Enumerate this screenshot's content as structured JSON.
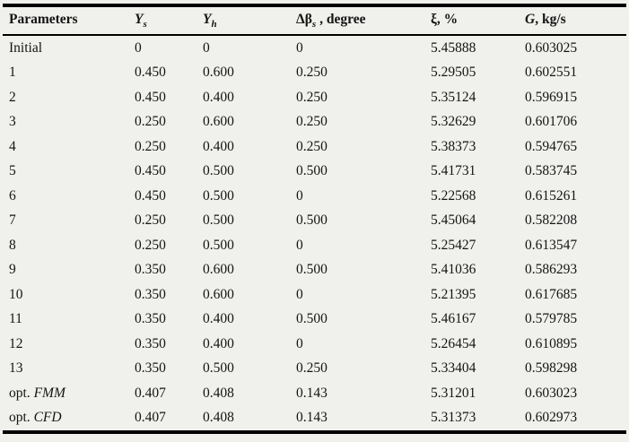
{
  "page": {
    "background_color": "#f0f0ed",
    "text_color": "#141414",
    "border_color": "#000000"
  },
  "table": {
    "header": {
      "parameters": "Parameters",
      "ys": {
        "base": "Y",
        "sub": "s"
      },
      "yh": {
        "base": "Y",
        "sub": "h"
      },
      "dbeta": {
        "base": "Δβ",
        "sub": "s",
        "suffix": ", degree"
      },
      "xi": "ξ, %",
      "g": {
        "base": "G",
        "suffix": ", kg/s"
      }
    },
    "rows": [
      {
        "param": "Initial",
        "param_italic": "",
        "ys": "0",
        "yh": "0",
        "dbeta": "0",
        "xi": "5.45888",
        "g": "0.603025"
      },
      {
        "param": "1",
        "param_italic": "",
        "ys": "0.450",
        "yh": "0.600",
        "dbeta": "0.250",
        "xi": "5.29505",
        "g": "0.602551"
      },
      {
        "param": "2",
        "param_italic": "",
        "ys": "0.450",
        "yh": "0.400",
        "dbeta": "0.250",
        "xi": "5.35124",
        "g": "0.596915"
      },
      {
        "param": "3",
        "param_italic": "",
        "ys": "0.250",
        "yh": "0.600",
        "dbeta": "0.250",
        "xi": "5.32629",
        "g": "0.601706"
      },
      {
        "param": "4",
        "param_italic": "",
        "ys": "0.250",
        "yh": "0.400",
        "dbeta": "0.250",
        "xi": "5.38373",
        "g": "0.594765"
      },
      {
        "param": "5",
        "param_italic": "",
        "ys": "0.450",
        "yh": "0.500",
        "dbeta": "0.500",
        "xi": "5.41731",
        "g": "0.583745"
      },
      {
        "param": "6",
        "param_italic": "",
        "ys": "0.450",
        "yh": "0.500",
        "dbeta": "0",
        "xi": "5.22568",
        "g": "0.615261"
      },
      {
        "param": "7",
        "param_italic": "",
        "ys": "0.250",
        "yh": "0.500",
        "dbeta": "0.500",
        "xi": "5.45064",
        "g": "0.582208"
      },
      {
        "param": "8",
        "param_italic": "",
        "ys": "0.250",
        "yh": "0.500",
        "dbeta": "0",
        "xi": "5.25427",
        "g": "0.613547"
      },
      {
        "param": "9",
        "param_italic": "",
        "ys": "0.350",
        "yh": "0.600",
        "dbeta": "0.500",
        "xi": "5.41036",
        "g": "0.586293"
      },
      {
        "param": "10",
        "param_italic": "",
        "ys": "0.350",
        "yh": "0.600",
        "dbeta": "0",
        "xi": "5.21395",
        "g": "0.617685"
      },
      {
        "param": "11",
        "param_italic": "",
        "ys": "0.350",
        "yh": "0.400",
        "dbeta": "0.500",
        "xi": "5.46167",
        "g": "0.579785"
      },
      {
        "param": "12",
        "param_italic": "",
        "ys": "0.350",
        "yh": "0.400",
        "dbeta": "0",
        "xi": "5.26454",
        "g": "0.610895"
      },
      {
        "param": "13",
        "param_italic": "",
        "ys": "0.350",
        "yh": "0.500",
        "dbeta": "0.250",
        "xi": "5.33404",
        "g": "0.598298"
      },
      {
        "param": "opt. ",
        "param_italic": "FMM",
        "ys": "0.407",
        "yh": "0.408",
        "dbeta": "0.143",
        "xi": "5.31201",
        "g": "0.603023"
      },
      {
        "param": "opt. ",
        "param_italic": "CFD",
        "ys": "0.407",
        "yh": "0.408",
        "dbeta": "0.143",
        "xi": "5.31373",
        "g": "0.602973"
      }
    ]
  }
}
